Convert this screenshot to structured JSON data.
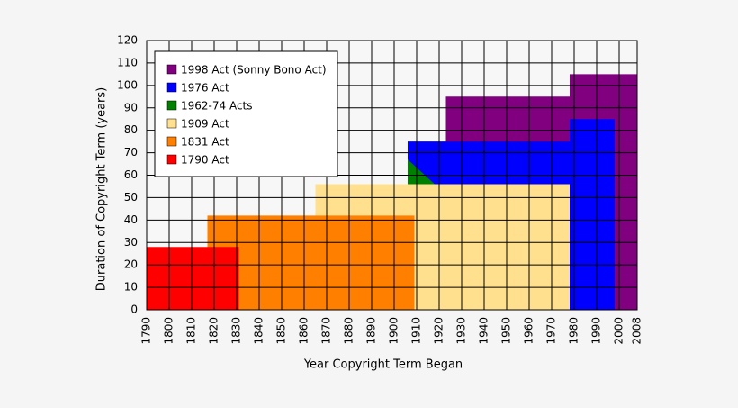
{
  "chart_data": {
    "type": "area",
    "x_label": "Year Copyright Term Began",
    "y_label": "Duration of Copyright Term (years)",
    "xlim": [
      1790,
      2008
    ],
    "xticks": [
      1790,
      1800,
      1810,
      1820,
      1830,
      1840,
      1850,
      1860,
      1870,
      1880,
      1890,
      1900,
      1910,
      1920,
      1930,
      1940,
      1950,
      1960,
      1970,
      1980,
      1990,
      2000,
      2008
    ],
    "ylim": [
      0,
      120
    ],
    "yticks": [
      0,
      10,
      20,
      30,
      40,
      50,
      60,
      70,
      80,
      90,
      100,
      110,
      120
    ],
    "grid": true,
    "legend": "upper left",
    "series": [
      {
        "name": "1998 Act (Sonny Bono Act)",
        "color": "#800080",
        "x": [
          1923,
          1923,
          1978,
          1978,
          2008,
          2008
        ],
        "values": [
          0,
          95,
          95,
          105,
          105,
          0
        ]
      },
      {
        "name": "1976 Act",
        "color": "#0000ff",
        "x": [
          1906,
          1906,
          1978,
          1978,
          1998,
          1998
        ],
        "values": [
          0,
          75,
          75,
          85,
          85,
          0
        ]
      },
      {
        "name": "1962-74 Acts",
        "color": "#008000",
        "x": [
          1906,
          1906,
          1918
        ],
        "values": [
          56,
          67,
          56
        ]
      },
      {
        "name": "1909 Act",
        "color": "#ffe08f",
        "x": [
          1865,
          1865,
          1978,
          1978
        ],
        "values": [
          0,
          56,
          56,
          0
        ]
      },
      {
        "name": "1831 Act",
        "color": "#ff8000",
        "x": [
          1817,
          1817,
          1909,
          1909
        ],
        "values": [
          0,
          42,
          42,
          0
        ]
      },
      {
        "name": "1790 Act",
        "color": "#ff0000",
        "x": [
          1790,
          1790,
          1831,
          1831
        ],
        "values": [
          0,
          28,
          28,
          0
        ]
      }
    ]
  }
}
